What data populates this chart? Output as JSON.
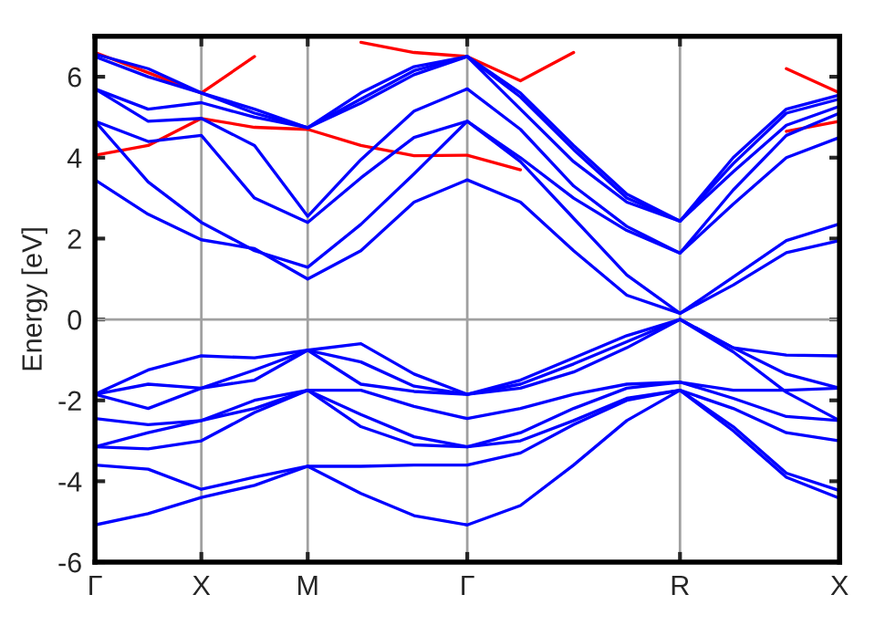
{
  "chart_data": {
    "type": "line",
    "ylabel": "Energy [eV]",
    "categories": [
      "Γ",
      null,
      "X",
      null,
      "M",
      null,
      null,
      "Γ",
      null,
      null,
      null,
      "R",
      null,
      null,
      "X"
    ],
    "ylim": [
      -6,
      7
    ],
    "yticks": [
      -6,
      -4,
      -2,
      0,
      2,
      4,
      6
    ],
    "grid": "x",
    "line_style": "solid",
    "ref_lines": [
      {
        "axis": "y",
        "value": 0,
        "color": "#a0a0a0"
      }
    ],
    "series": [
      {
        "color": "#ff0000",
        "values": [
          4.06,
          4.3,
          4.97,
          4.75,
          4.7,
          4.3,
          4.05,
          4.06,
          3.7,
          null,
          null,
          null,
          null,
          null,
          null
        ]
      },
      {
        "color": "#ff0000",
        "values": [
          6.6,
          6.1,
          5.6,
          6.5,
          null,
          null,
          null,
          null,
          null,
          null,
          null,
          null,
          null,
          null,
          null
        ]
      },
      {
        "color": "#ff0000",
        "values": [
          null,
          null,
          null,
          null,
          null,
          6.85,
          6.6,
          6.5,
          5.9,
          6.6,
          null,
          null,
          null,
          null,
          null
        ]
      },
      {
        "color": "#ff0000",
        "values": [
          null,
          null,
          null,
          null,
          null,
          null,
          null,
          null,
          null,
          null,
          null,
          null,
          null,
          6.2,
          5.6
        ]
      },
      {
        "color": "#ff0000",
        "values": [
          null,
          null,
          null,
          null,
          null,
          null,
          null,
          null,
          null,
          null,
          null,
          null,
          null,
          4.65,
          4.9
        ]
      },
      {
        "color": "#0000ff",
        "values": [
          -1.85,
          -1.25,
          -0.9,
          -0.95,
          -0.76,
          -0.6,
          -1.35,
          -1.85,
          -1.5,
          -0.95,
          -0.4,
          0,
          -0.7,
          -0.88,
          -0.9
        ]
      },
      {
        "color": "#0000ff",
        "values": [
          -1.85,
          -1.6,
          -1.7,
          -1.25,
          -0.76,
          -1.05,
          -1.65,
          -1.85,
          -1.6,
          -1.1,
          -0.55,
          0,
          -0.7,
          -1.35,
          -1.7
        ]
      },
      {
        "color": "#0000ff",
        "values": [
          -1.85,
          -2.2,
          -1.7,
          -1.5,
          -0.76,
          -1.6,
          -1.78,
          -1.85,
          -1.7,
          -1.3,
          -0.7,
          0,
          -0.8,
          -1.8,
          -2.5
        ]
      },
      {
        "color": "#0000ff",
        "values": [
          -2.45,
          -2.6,
          -2.5,
          -2.2,
          -1.75,
          -1.75,
          -2.15,
          -2.45,
          -2.2,
          -1.85,
          -1.6,
          -1.55,
          -1.75,
          -1.75,
          -1.7
        ]
      },
      {
        "color": "#0000ff",
        "values": [
          -3.15,
          -2.8,
          -2.5,
          -2.0,
          -1.75,
          -2.35,
          -2.9,
          -3.15,
          -2.8,
          -2.2,
          -1.7,
          -1.55,
          -1.95,
          -2.4,
          -2.5
        ]
      },
      {
        "color": "#0000ff",
        "values": [
          -3.15,
          -3.2,
          -3.0,
          -2.3,
          -1.75,
          -2.65,
          -3.1,
          -3.15,
          -3.0,
          -2.5,
          -1.95,
          -1.75,
          -2.2,
          -2.8,
          -3.0
        ]
      },
      {
        "color": "#0000ff",
        "values": [
          -3.6,
          -3.7,
          -4.2,
          -3.9,
          -3.63,
          -3.63,
          -3.6,
          -3.6,
          -3.3,
          -2.6,
          -2.0,
          -1.75,
          -2.65,
          -3.8,
          -4.23
        ]
      },
      {
        "color": "#0000ff",
        "values": [
          -5.08,
          -4.8,
          -4.4,
          -4.1,
          -3.63,
          -4.3,
          -4.85,
          -5.08,
          -4.6,
          -3.6,
          -2.5,
          -1.75,
          -2.75,
          -3.9,
          -4.42
        ]
      },
      {
        "color": "#0000ff",
        "values": [
          3.45,
          2.6,
          1.97,
          1.75,
          1.0,
          1.7,
          2.9,
          3.45,
          2.9,
          1.7,
          0.6,
          0.15,
          0.85,
          1.65,
          1.95
        ]
      },
      {
        "color": "#0000ff",
        "values": [
          4.9,
          3.4,
          2.4,
          1.7,
          1.29,
          2.35,
          3.6,
          4.9,
          3.9,
          2.5,
          1.1,
          0.15,
          1.05,
          1.95,
          2.36
        ]
      },
      {
        "color": "#0000ff",
        "values": [
          4.9,
          4.4,
          4.55,
          3.0,
          2.4,
          3.5,
          4.5,
          4.9,
          4.0,
          3.0,
          2.2,
          1.64,
          2.85,
          4.0,
          4.5
        ]
      },
      {
        "color": "#0000ff",
        "values": [
          5.7,
          4.9,
          4.97,
          4.3,
          2.55,
          3.95,
          5.15,
          5.7,
          4.7,
          3.3,
          2.3,
          1.64,
          3.2,
          4.55,
          5.1
        ]
      },
      {
        "color": "#0000ff",
        "values": [
          5.7,
          5.2,
          5.36,
          5.0,
          4.74,
          5.35,
          6.05,
          6.5,
          5.2,
          3.9,
          2.9,
          2.43,
          3.65,
          4.8,
          5.27
        ]
      },
      {
        "color": "#0000ff",
        "values": [
          6.5,
          6.0,
          5.6,
          5.1,
          4.74,
          5.45,
          6.15,
          6.5,
          5.5,
          4.2,
          3.0,
          2.43,
          3.85,
          5.1,
          5.45
        ]
      },
      {
        "color": "#0000ff",
        "values": [
          6.56,
          6.2,
          5.6,
          5.2,
          4.74,
          5.6,
          6.25,
          6.5,
          5.6,
          4.3,
          3.1,
          2.43,
          4.0,
          5.2,
          5.55
        ]
      }
    ]
  }
}
